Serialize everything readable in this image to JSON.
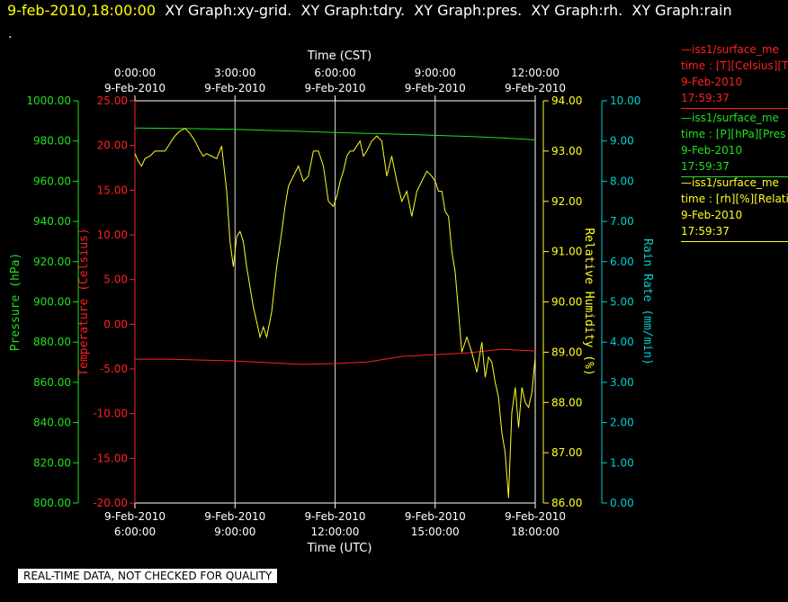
{
  "header": {
    "timestamp": "9-feb-2010,18:00:00",
    "graphs": [
      "XY Graph:xy-grid.",
      "XY Graph:tdry.",
      "XY Graph:pres.",
      "XY Graph:rh.",
      "XY Graph:rain"
    ],
    "dot": "."
  },
  "legend": [
    {
      "title": "iss1/surface_me",
      "line2": "time : [T][Celsius][T",
      "date": "9-Feb-2010",
      "time": "17:59:37",
      "color": "#ff2020"
    },
    {
      "title": "iss1/surface_me",
      "line2": "time : [P][hPa][Pres",
      "date": "9-Feb-2010",
      "time": "17:59:37",
      "color": "#20e020"
    },
    {
      "title": "iss1/surface_me",
      "line2": "time : [rh][%][Relati",
      "date": "9-Feb-2010",
      "time": "17:59:37",
      "color": "#ffff20"
    }
  ],
  "footer": "REAL-TIME DATA, NOT CHECKED FOR QUALITY",
  "colors": {
    "temperature": "#ff2020",
    "pressure": "#20e020",
    "humidity": "#ffff20",
    "rain": "#00d0d0",
    "grid": "#ffffff"
  },
  "chart_data": {
    "type": "line",
    "grid": true,
    "x_top": {
      "label": "Time (CST)",
      "ticks": [
        {
          "t": 0,
          "time": "0:00:00",
          "date": "9-Feb-2010"
        },
        {
          "t": 3,
          "time": "3:00:00",
          "date": "9-Feb-2010"
        },
        {
          "t": 6,
          "time": "6:00:00",
          "date": "9-Feb-2010"
        },
        {
          "t": 9,
          "time": "9:00:00",
          "date": "9-Feb-2010"
        },
        {
          "t": 12,
          "time": "12:00:00",
          "date": "9-Feb-2010"
        }
      ]
    },
    "x_bottom": {
      "label": "Time (UTC)",
      "range": [
        "6:00:00",
        "18:00:00"
      ],
      "ticks": [
        {
          "t": 0,
          "date": "9-Feb-2010",
          "time": "6:00:00"
        },
        {
          "t": 3,
          "date": "9-Feb-2010",
          "time": "9:00:00"
        },
        {
          "t": 6,
          "date": "9-Feb-2010",
          "time": "12:00:00"
        },
        {
          "t": 9,
          "date": "9-Feb-2010",
          "time": "15:00:00"
        },
        {
          "t": 12,
          "date": "9-Feb-2010",
          "time": "18:00:00"
        }
      ]
    },
    "axes": {
      "pressure": {
        "label": "Pressure (hPa)",
        "ylim": [
          800,
          1000
        ],
        "ticks": [
          "1000.00",
          "980.00",
          "960.00",
          "940.00",
          "920.00",
          "900.00",
          "880.00",
          "860.00",
          "840.00",
          "820.00",
          "800.00"
        ]
      },
      "temperature": {
        "label": "Temperature (Celsius)",
        "ylim": [
          -20,
          25
        ],
        "ticks": [
          "25.00",
          "20.00",
          "15.00",
          "10.00",
          "5.00",
          "0.00",
          "-5.00",
          "-10.00",
          "-15.00",
          "-20.00"
        ]
      },
      "humidity": {
        "label": "Relative Humidity (%)",
        "ylim": [
          86,
          94
        ],
        "ticks": [
          "94.00",
          "93.00",
          "92.00",
          "91.00",
          "90.00",
          "89.00",
          "88.00",
          "87.00",
          "86.00"
        ]
      },
      "rain": {
        "label": "Rain Rate (mm/min)",
        "ylim": [
          0,
          10
        ],
        "ticks": [
          "10.00",
          "9.00",
          "8.00",
          "7.00",
          "6.00",
          "5.00",
          "4.00",
          "3.00",
          "2.00",
          "1.00",
          "0.00"
        ]
      }
    },
    "series": [
      {
        "axis": "pressure",
        "x": [
          0,
          1,
          2,
          3,
          4,
          5,
          6,
          7,
          8,
          9,
          10,
          11,
          12
        ],
        "values": [
          986.5,
          986.3,
          986.1,
          985.8,
          985.3,
          984.8,
          984.2,
          983.8,
          983.3,
          982.8,
          982.3,
          981.5,
          980.6
        ]
      },
      {
        "axis": "temperature",
        "x": [
          0,
          1,
          2,
          3,
          4,
          5,
          6,
          7,
          8,
          9,
          10,
          11,
          12
        ],
        "values": [
          -3.9,
          -3.9,
          -4.0,
          -4.1,
          -4.3,
          -4.5,
          -4.4,
          -4.2,
          -3.6,
          -3.4,
          -3.2,
          -2.8,
          -3.0
        ]
      },
      {
        "axis": "humidity",
        "x": [
          0,
          0.1,
          0.2,
          0.3,
          0.45,
          0.6,
          0.75,
          0.9,
          1.05,
          1.2,
          1.35,
          1.5,
          1.65,
          1.8,
          1.95,
          2.05,
          2.15,
          2.3,
          2.45,
          2.6,
          2.75,
          2.85,
          2.95,
          3.05,
          3.15,
          3.25,
          3.35,
          3.45,
          3.55,
          3.65,
          3.75,
          3.85,
          3.95,
          4.1,
          4.25,
          4.4,
          4.5,
          4.6,
          4.75,
          4.9,
          5.05,
          5.2,
          5.35,
          5.5,
          5.65,
          5.8,
          5.95,
          6.05,
          6.15,
          6.25,
          6.35,
          6.45,
          6.55,
          6.65,
          6.75,
          6.85,
          6.95,
          7.1,
          7.25,
          7.4,
          7.55,
          7.7,
          7.85,
          8.0,
          8.15,
          8.3,
          8.45,
          8.6,
          8.75,
          8.9,
          9.0,
          9.1,
          9.2,
          9.3,
          9.4,
          9.5,
          9.6,
          9.7,
          9.8,
          9.95,
          10.1,
          10.25,
          10.4,
          10.5,
          10.6,
          10.7,
          10.8,
          10.9,
          11.0,
          11.1,
          11.2,
          11.3,
          11.4,
          11.5,
          11.6,
          11.7,
          11.8,
          11.9,
          12.0
        ],
        "values": [
          92.95,
          92.8,
          92.7,
          92.85,
          92.9,
          93.0,
          93.0,
          93.0,
          93.15,
          93.3,
          93.4,
          93.45,
          93.35,
          93.2,
          93.0,
          92.9,
          92.95,
          92.9,
          92.85,
          93.1,
          92.2,
          91.2,
          90.7,
          91.3,
          91.4,
          91.2,
          90.7,
          90.3,
          89.9,
          89.6,
          89.3,
          89.5,
          89.3,
          89.8,
          90.7,
          91.4,
          91.9,
          92.3,
          92.5,
          92.7,
          92.4,
          92.5,
          93.0,
          93.0,
          92.7,
          92.0,
          91.9,
          92.1,
          92.4,
          92.6,
          92.9,
          93.0,
          93.0,
          93.1,
          93.2,
          92.9,
          93.0,
          93.2,
          93.3,
          93.2,
          92.5,
          92.9,
          92.4,
          92.0,
          92.2,
          91.7,
          92.2,
          92.4,
          92.6,
          92.5,
          92.4,
          92.2,
          92.2,
          91.8,
          91.7,
          91.0,
          90.6,
          89.8,
          89.0,
          89.3,
          89.0,
          88.6,
          89.2,
          88.5,
          88.9,
          88.8,
          88.4,
          88.1,
          87.4,
          87.0,
          86.1,
          87.8,
          88.3,
          87.5,
          88.3,
          88.0,
          87.9,
          88.2,
          88.9
        ]
      },
      {
        "axis": "rain",
        "x": [],
        "values": []
      }
    ]
  }
}
